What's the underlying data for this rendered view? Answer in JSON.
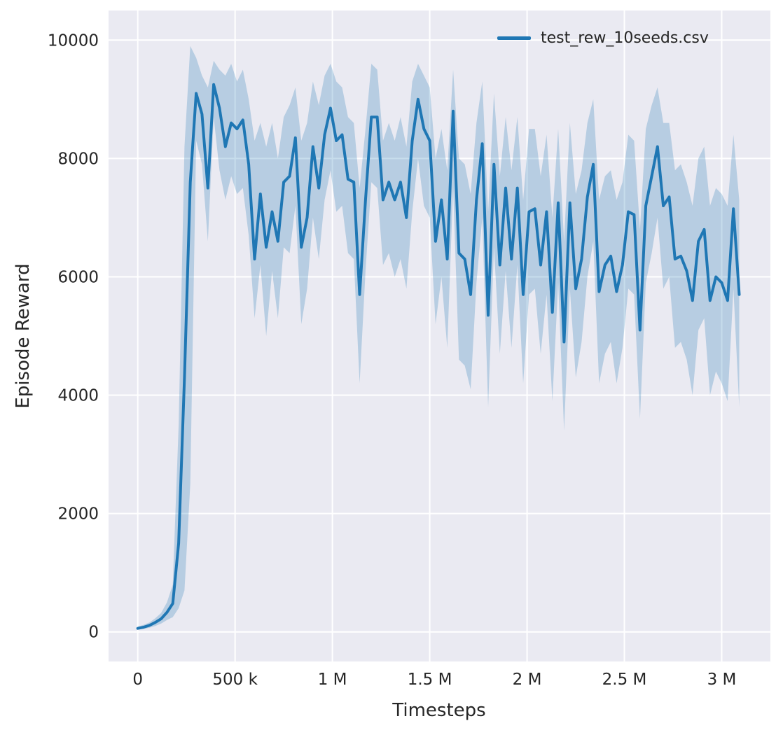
{
  "figure": {
    "xlabel": "Timesteps",
    "ylabel": "Episode Reward",
    "legend": {
      "label": "test_rew_10seeds.csv"
    }
  },
  "colors": {
    "line": "#1f77b4",
    "band": "#1f77b4",
    "band_opacity": 0.25,
    "plot_bg": "#eaeaf2",
    "grid": "#ffffff",
    "text": "#262626"
  },
  "chart_data": {
    "type": "line",
    "title": "",
    "xlabel": "Timesteps",
    "ylabel": "Episode Reward",
    "legend": [
      "test_rew_10seeds.csv"
    ],
    "legend_position": "upper right",
    "grid": true,
    "xlim": [
      -150000,
      3250000
    ],
    "ylim": [
      -500,
      10500
    ],
    "xticks": [
      {
        "value": 0,
        "label": "0"
      },
      {
        "value": 500000,
        "label": "500 k"
      },
      {
        "value": 1000000,
        "label": "1 M"
      },
      {
        "value": 1500000,
        "label": "1.5 M"
      },
      {
        "value": 2000000,
        "label": "2 M"
      },
      {
        "value": 2500000,
        "label": "2.5 M"
      },
      {
        "value": 3000000,
        "label": "3 M"
      }
    ],
    "yticks": [
      {
        "value": 0,
        "label": "0"
      },
      {
        "value": 2000,
        "label": "2000"
      },
      {
        "value": 4000,
        "label": "4000"
      },
      {
        "value": 6000,
        "label": "6000"
      },
      {
        "value": 8000,
        "label": "8000"
      },
      {
        "value": 10000,
        "label": "10000"
      }
    ],
    "series": [
      {
        "name": "test_rew_10seeds.csv",
        "point_format": [
          "timesteps",
          "mean_reward",
          "band_lower",
          "band_upper"
        ],
        "points": [
          [
            0,
            60,
            40,
            90
          ],
          [
            30000,
            80,
            50,
            120
          ],
          [
            60000,
            110,
            70,
            160
          ],
          [
            90000,
            160,
            100,
            230
          ],
          [
            120000,
            220,
            140,
            320
          ],
          [
            150000,
            330,
            200,
            500
          ],
          [
            180000,
            480,
            250,
            800
          ],
          [
            210000,
            1500,
            400,
            3500
          ],
          [
            240000,
            4300,
            700,
            8200
          ],
          [
            270000,
            7600,
            2500,
            9900
          ],
          [
            300000,
            9100,
            8300,
            9700
          ],
          [
            330000,
            8750,
            7900,
            9400
          ],
          [
            360000,
            7500,
            6600,
            9200
          ],
          [
            390000,
            9250,
            8700,
            9650
          ],
          [
            420000,
            8850,
            7800,
            9500
          ],
          [
            450000,
            8200,
            7300,
            9400
          ],
          [
            480000,
            8600,
            7700,
            9600
          ],
          [
            510000,
            8500,
            7400,
            9300
          ],
          [
            540000,
            8650,
            7500,
            9500
          ],
          [
            570000,
            7900,
            6700,
            9000
          ],
          [
            600000,
            6300,
            5300,
            8300
          ],
          [
            630000,
            7400,
            6200,
            8600
          ],
          [
            660000,
            6500,
            5000,
            8200
          ],
          [
            690000,
            7100,
            6100,
            8600
          ],
          [
            720000,
            6600,
            5300,
            8000
          ],
          [
            750000,
            7600,
            6500,
            8700
          ],
          [
            780000,
            7700,
            6400,
            8900
          ],
          [
            810000,
            8350,
            7200,
            9200
          ],
          [
            840000,
            6500,
            5200,
            8300
          ],
          [
            870000,
            7000,
            5800,
            8600
          ],
          [
            900000,
            8200,
            7000,
            9300
          ],
          [
            930000,
            7500,
            6300,
            8900
          ],
          [
            960000,
            8400,
            7300,
            9400
          ],
          [
            990000,
            8850,
            7800,
            9600
          ],
          [
            1020000,
            8300,
            7100,
            9300
          ],
          [
            1050000,
            8400,
            7200,
            9200
          ],
          [
            1080000,
            7650,
            6400,
            8700
          ],
          [
            1110000,
            7600,
            6300,
            8600
          ],
          [
            1140000,
            5700,
            4200,
            7500
          ],
          [
            1170000,
            7300,
            6100,
            8500
          ],
          [
            1200000,
            8700,
            7600,
            9600
          ],
          [
            1230000,
            8700,
            7500,
            9500
          ],
          [
            1260000,
            7300,
            6200,
            8300
          ],
          [
            1290000,
            7600,
            6400,
            8600
          ],
          [
            1320000,
            7300,
            6000,
            8300
          ],
          [
            1350000,
            7600,
            6300,
            8700
          ],
          [
            1380000,
            7000,
            5800,
            8200
          ],
          [
            1410000,
            8300,
            7100,
            9300
          ],
          [
            1440000,
            9000,
            8000,
            9600
          ],
          [
            1470000,
            8500,
            7200,
            9400
          ],
          [
            1500000,
            8300,
            7000,
            9200
          ],
          [
            1530000,
            6600,
            5200,
            8000
          ],
          [
            1560000,
            7300,
            6000,
            8500
          ],
          [
            1590000,
            6300,
            4800,
            7800
          ],
          [
            1620000,
            8800,
            7500,
            9500
          ],
          [
            1650000,
            6400,
            4600,
            8000
          ],
          [
            1680000,
            6300,
            4500,
            7900
          ],
          [
            1710000,
            5700,
            4100,
            7400
          ],
          [
            1740000,
            7300,
            5900,
            8600
          ],
          [
            1770000,
            8250,
            7000,
            9300
          ],
          [
            1800000,
            5350,
            3800,
            7100
          ],
          [
            1830000,
            7900,
            6500,
            9100
          ],
          [
            1860000,
            6200,
            4700,
            7700
          ],
          [
            1890000,
            7500,
            6100,
            8700
          ],
          [
            1920000,
            6300,
            4800,
            7800
          ],
          [
            1950000,
            7500,
            6200,
            8700
          ],
          [
            1980000,
            5700,
            4200,
            7300
          ],
          [
            2010000,
            7100,
            5700,
            8500
          ],
          [
            2040000,
            7150,
            5800,
            8500
          ],
          [
            2070000,
            6200,
            4700,
            7700
          ],
          [
            2100000,
            7100,
            5700,
            8400
          ],
          [
            2130000,
            5400,
            3900,
            7000
          ],
          [
            2160000,
            7250,
            5900,
            8500
          ],
          [
            2190000,
            4900,
            3400,
            6600
          ],
          [
            2220000,
            7250,
            5800,
            8600
          ],
          [
            2250000,
            5800,
            4300,
            7400
          ],
          [
            2280000,
            6300,
            4900,
            7800
          ],
          [
            2310000,
            7350,
            6000,
            8600
          ],
          [
            2340000,
            7900,
            6600,
            9000
          ],
          [
            2370000,
            5750,
            4200,
            7300
          ],
          [
            2400000,
            6200,
            4700,
            7700
          ],
          [
            2430000,
            6350,
            4900,
            7800
          ],
          [
            2460000,
            5750,
            4200,
            7300
          ],
          [
            2490000,
            6200,
            4800,
            7600
          ],
          [
            2520000,
            7100,
            5800,
            8400
          ],
          [
            2550000,
            7050,
            5700,
            8300
          ],
          [
            2580000,
            5100,
            3600,
            6800
          ],
          [
            2610000,
            7200,
            5900,
            8500
          ],
          [
            2640000,
            7700,
            6400,
            8900
          ],
          [
            2670000,
            8200,
            7000,
            9200
          ],
          [
            2700000,
            7200,
            5800,
            8600
          ],
          [
            2730000,
            7350,
            6000,
            8600
          ],
          [
            2760000,
            6300,
            4800,
            7800
          ],
          [
            2790000,
            6350,
            4900,
            7900
          ],
          [
            2820000,
            6100,
            4600,
            7600
          ],
          [
            2850000,
            5600,
            4000,
            7200
          ],
          [
            2880000,
            6600,
            5100,
            8000
          ],
          [
            2910000,
            6800,
            5300,
            8200
          ],
          [
            2940000,
            5600,
            4000,
            7200
          ],
          [
            2970000,
            6000,
            4400,
            7500
          ],
          [
            3000000,
            5900,
            4200,
            7400
          ],
          [
            3030000,
            5600,
            3900,
            7200
          ],
          [
            3060000,
            7150,
            5800,
            8400
          ],
          [
            3090000,
            5700,
            3800,
            7300
          ]
        ]
      }
    ]
  }
}
